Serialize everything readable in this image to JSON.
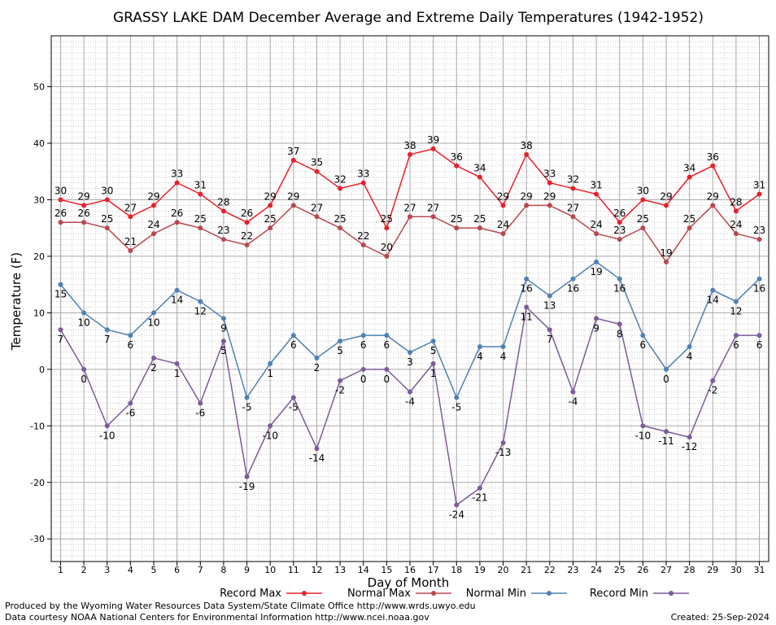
{
  "chart_data": {
    "type": "line",
    "title": "GRASSY LAKE DAM December Average and Extreme Daily Temperatures (1942-1952)",
    "xlabel": "Day of Month",
    "ylabel": "Temperature (F)",
    "x": [
      1,
      2,
      3,
      4,
      5,
      6,
      7,
      8,
      9,
      10,
      11,
      12,
      13,
      14,
      15,
      16,
      17,
      18,
      19,
      20,
      21,
      22,
      23,
      24,
      25,
      26,
      27,
      28,
      29,
      30,
      31
    ],
    "xlim": [
      0.6,
      31.4
    ],
    "ylim": [
      -34,
      59
    ],
    "yticks": [
      -30,
      -20,
      -10,
      0,
      10,
      20,
      30,
      40,
      50
    ],
    "grid": true,
    "legend_position": "bottom",
    "series": [
      {
        "name": "Record Max",
        "color": "#e8202a",
        "values": [
          30,
          29,
          30,
          27,
          29,
          33,
          31,
          28,
          26,
          29,
          37,
          35,
          32,
          33,
          25,
          38,
          39,
          36,
          34,
          29,
          38,
          33,
          32,
          31,
          26,
          30,
          29,
          34,
          36,
          28,
          31
        ]
      },
      {
        "name": "Normal Max",
        "color": "#b9474f",
        "values": [
          26,
          26,
          25,
          21,
          24,
          26,
          25,
          23,
          22,
          25,
          29,
          27,
          25,
          22,
          20,
          27,
          27,
          25,
          25,
          24,
          29,
          29,
          27,
          24,
          23,
          25,
          19,
          25,
          29,
          24,
          23
        ]
      },
      {
        "name": "Normal Min",
        "color": "#4f81b4",
        "values": [
          15,
          10,
          7,
          6,
          10,
          14,
          12,
          9,
          -5,
          1,
          6,
          2,
          5,
          6,
          6,
          3,
          5,
          -5,
          4,
          4,
          16,
          13,
          16,
          19,
          16,
          6,
          0,
          4,
          14,
          12,
          16
        ]
      },
      {
        "name": "Record Min",
        "color": "#7d5a9b",
        "values": [
          7,
          0,
          -10,
          -6,
          2,
          1,
          -6,
          5,
          -19,
          -10,
          -5,
          -14,
          -2,
          0,
          0,
          -4,
          1,
          -24,
          -21,
          -13,
          11,
          7,
          -4,
          9,
          8,
          -10,
          -11,
          -12,
          -2,
          6,
          6
        ]
      }
    ]
  },
  "footer": {
    "produced_by": "Produced by the Wyoming Water Resources Data System/State Climate Office http://www.wrds.uwyo.edu",
    "courtesy": "Data courtesy NOAA National Centers for Environmental Information http://www.ncei.noaa.gov",
    "created": "Created: 25-Sep-2024"
  }
}
